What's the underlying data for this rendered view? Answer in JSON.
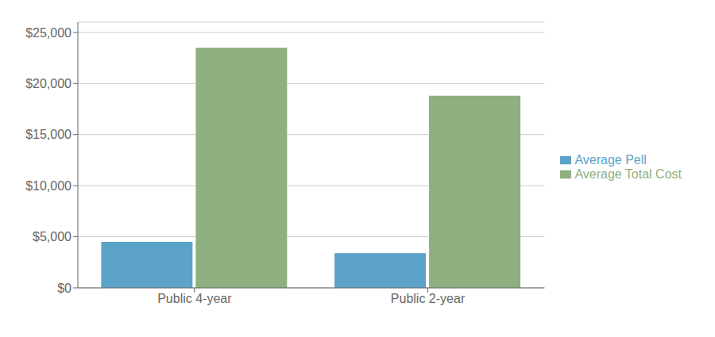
{
  "chart_data": {
    "type": "bar",
    "categories": [
      "Public 4-year",
      "Public 2-year"
    ],
    "series": [
      {
        "name": "Average Pell",
        "color": "#5BA3C9",
        "values": [
          4500,
          3400
        ]
      },
      {
        "name": "Average Total Cost",
        "color": "#8FAF7E",
        "values": [
          23500,
          18800
        ]
      }
    ],
    "ylim": [
      0,
      26000
    ],
    "yticks": [
      {
        "value": 0,
        "label": "$0"
      },
      {
        "value": 5000,
        "label": "$5,000"
      },
      {
        "value": 10000,
        "label": "$10,000"
      },
      {
        "value": 15000,
        "label": "$15,000"
      },
      {
        "value": 20000,
        "label": "$20,000"
      },
      {
        "value": 25000,
        "label": "$25,000"
      }
    ],
    "grid": true,
    "legend": "right"
  }
}
